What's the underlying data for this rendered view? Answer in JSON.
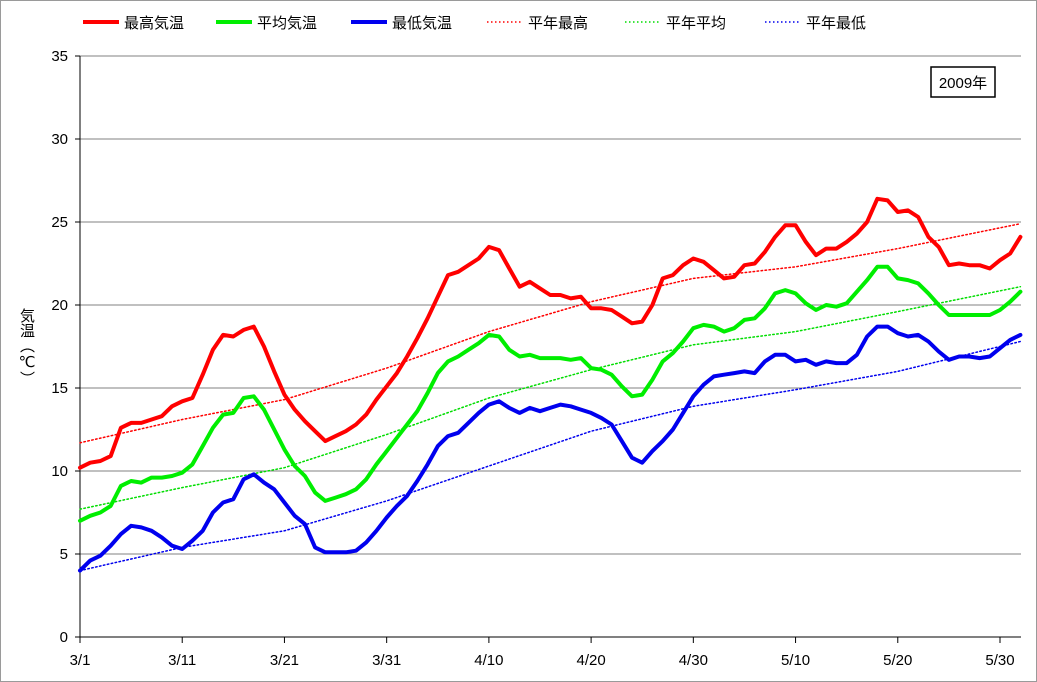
{
  "chart_data": {
    "type": "line",
    "year_label": "2009年",
    "ylabel": "気温（℃）",
    "ylim": [
      0,
      35
    ],
    "yticks": [
      0,
      5,
      10,
      15,
      20,
      25,
      30,
      35
    ],
    "xlim_days": [
      0,
      91
    ],
    "xticks": [
      {
        "label": "3/1",
        "day": 0
      },
      {
        "label": "3/11",
        "day": 10
      },
      {
        "label": "3/21",
        "day": 20
      },
      {
        "label": "3/31",
        "day": 30
      },
      {
        "label": "4/10",
        "day": 40
      },
      {
        "label": "4/20",
        "day": 50
      },
      {
        "label": "4/30",
        "day": 60
      },
      {
        "label": "5/10",
        "day": 70
      },
      {
        "label": "5/20",
        "day": 80
      },
      {
        "label": "5/30",
        "day": 90
      }
    ],
    "grid": true,
    "legend_position": "top",
    "series": [
      {
        "name": "最高気温",
        "color": "#ff0000",
        "style": "solid",
        "points": [
          [
            0,
            10.2
          ],
          [
            1,
            10.5
          ],
          [
            2,
            10.6
          ],
          [
            3,
            10.9
          ],
          [
            4,
            12.6
          ],
          [
            5,
            12.9
          ],
          [
            6,
            12.9
          ],
          [
            7,
            13.1
          ],
          [
            8,
            13.3
          ],
          [
            9,
            13.9
          ],
          [
            10,
            14.2
          ],
          [
            11,
            14.4
          ],
          [
            12,
            15.8
          ],
          [
            13,
            17.3
          ],
          [
            14,
            18.2
          ],
          [
            15,
            18.1
          ],
          [
            16,
            18.5
          ],
          [
            17,
            18.7
          ],
          [
            18,
            17.5
          ],
          [
            19,
            16.0
          ],
          [
            20,
            14.6
          ],
          [
            21,
            13.7
          ],
          [
            22,
            13.0
          ],
          [
            23,
            12.4
          ],
          [
            24,
            11.8
          ],
          [
            25,
            12.1
          ],
          [
            26,
            12.4
          ],
          [
            27,
            12.8
          ],
          [
            28,
            13.4
          ],
          [
            29,
            14.3
          ],
          [
            30,
            15.1
          ],
          [
            31,
            15.9
          ],
          [
            32,
            16.9
          ],
          [
            33,
            18.0
          ],
          [
            34,
            19.2
          ],
          [
            35,
            20.5
          ],
          [
            36,
            21.8
          ],
          [
            37,
            22.0
          ],
          [
            38,
            22.4
          ],
          [
            39,
            22.8
          ],
          [
            40,
            23.5
          ],
          [
            41,
            23.3
          ],
          [
            42,
            22.2
          ],
          [
            43,
            21.1
          ],
          [
            44,
            21.4
          ],
          [
            45,
            21.0
          ],
          [
            46,
            20.6
          ],
          [
            47,
            20.6
          ],
          [
            48,
            20.4
          ],
          [
            49,
            20.5
          ],
          [
            50,
            19.8
          ],
          [
            51,
            19.8
          ],
          [
            52,
            19.7
          ],
          [
            53,
            19.3
          ],
          [
            54,
            18.9
          ],
          [
            55,
            19.0
          ],
          [
            56,
            20.0
          ],
          [
            57,
            21.6
          ],
          [
            58,
            21.8
          ],
          [
            59,
            22.4
          ],
          [
            60,
            22.8
          ],
          [
            61,
            22.6
          ],
          [
            62,
            22.1
          ],
          [
            63,
            21.6
          ],
          [
            64,
            21.7
          ],
          [
            65,
            22.4
          ],
          [
            66,
            22.5
          ],
          [
            67,
            23.2
          ],
          [
            68,
            24.1
          ],
          [
            69,
            24.8
          ],
          [
            70,
            24.8
          ],
          [
            71,
            23.8
          ],
          [
            72,
            23.0
          ],
          [
            73,
            23.4
          ],
          [
            74,
            23.4
          ],
          [
            75,
            23.8
          ],
          [
            76,
            24.3
          ],
          [
            77,
            25.0
          ],
          [
            78,
            26.4
          ],
          [
            79,
            26.3
          ],
          [
            80,
            25.6
          ],
          [
            81,
            25.7
          ],
          [
            82,
            25.3
          ],
          [
            83,
            24.1
          ],
          [
            84,
            23.5
          ],
          [
            85,
            22.4
          ],
          [
            86,
            22.5
          ],
          [
            87,
            22.4
          ],
          [
            88,
            22.4
          ],
          [
            89,
            22.2
          ],
          [
            90,
            22.7
          ],
          [
            91,
            23.1
          ],
          [
            92,
            24.1
          ]
        ]
      },
      {
        "name": "平均気温",
        "color": "#00ee00",
        "style": "solid",
        "points": [
          [
            0,
            7.0
          ],
          [
            1,
            7.3
          ],
          [
            2,
            7.5
          ],
          [
            3,
            7.9
          ],
          [
            4,
            9.1
          ],
          [
            5,
            9.4
          ],
          [
            6,
            9.3
          ],
          [
            7,
            9.6
          ],
          [
            8,
            9.6
          ],
          [
            9,
            9.7
          ],
          [
            10,
            9.9
          ],
          [
            11,
            10.4
          ],
          [
            12,
            11.5
          ],
          [
            13,
            12.6
          ],
          [
            14,
            13.4
          ],
          [
            15,
            13.5
          ],
          [
            16,
            14.4
          ],
          [
            17,
            14.5
          ],
          [
            18,
            13.7
          ],
          [
            19,
            12.5
          ],
          [
            20,
            11.3
          ],
          [
            21,
            10.3
          ],
          [
            22,
            9.7
          ],
          [
            23,
            8.7
          ],
          [
            24,
            8.2
          ],
          [
            25,
            8.4
          ],
          [
            26,
            8.6
          ],
          [
            27,
            8.9
          ],
          [
            28,
            9.5
          ],
          [
            29,
            10.4
          ],
          [
            30,
            11.2
          ],
          [
            31,
            12.0
          ],
          [
            32,
            12.8
          ],
          [
            33,
            13.6
          ],
          [
            34,
            14.7
          ],
          [
            35,
            15.9
          ],
          [
            36,
            16.6
          ],
          [
            37,
            16.9
          ],
          [
            38,
            17.3
          ],
          [
            39,
            17.7
          ],
          [
            40,
            18.2
          ],
          [
            41,
            18.1
          ],
          [
            42,
            17.3
          ],
          [
            43,
            16.9
          ],
          [
            44,
            17.0
          ],
          [
            45,
            16.8
          ],
          [
            46,
            16.8
          ],
          [
            47,
            16.8
          ],
          [
            48,
            16.7
          ],
          [
            49,
            16.8
          ],
          [
            50,
            16.2
          ],
          [
            51,
            16.1
          ],
          [
            52,
            15.8
          ],
          [
            53,
            15.1
          ],
          [
            54,
            14.5
          ],
          [
            55,
            14.6
          ],
          [
            56,
            15.5
          ],
          [
            57,
            16.6
          ],
          [
            58,
            17.1
          ],
          [
            59,
            17.8
          ],
          [
            60,
            18.6
          ],
          [
            61,
            18.8
          ],
          [
            62,
            18.7
          ],
          [
            63,
            18.4
          ],
          [
            64,
            18.6
          ],
          [
            65,
            19.1
          ],
          [
            66,
            19.2
          ],
          [
            67,
            19.8
          ],
          [
            68,
            20.7
          ],
          [
            69,
            20.9
          ],
          [
            70,
            20.7
          ],
          [
            71,
            20.1
          ],
          [
            72,
            19.7
          ],
          [
            73,
            20.0
          ],
          [
            74,
            19.9
          ],
          [
            75,
            20.1
          ],
          [
            76,
            20.8
          ],
          [
            77,
            21.5
          ],
          [
            78,
            22.3
          ],
          [
            79,
            22.3
          ],
          [
            80,
            21.6
          ],
          [
            81,
            21.5
          ],
          [
            82,
            21.3
          ],
          [
            83,
            20.7
          ],
          [
            84,
            20.0
          ],
          [
            85,
            19.4
          ],
          [
            86,
            19.4
          ],
          [
            87,
            19.4
          ],
          [
            88,
            19.4
          ],
          [
            89,
            19.4
          ],
          [
            90,
            19.7
          ],
          [
            91,
            20.2
          ],
          [
            92,
            20.8
          ]
        ]
      },
      {
        "name": "最低気温",
        "color": "#0000ee",
        "style": "solid",
        "points": [
          [
            0,
            4.0
          ],
          [
            1,
            4.6
          ],
          [
            2,
            4.9
          ],
          [
            3,
            5.5
          ],
          [
            4,
            6.2
          ],
          [
            5,
            6.7
          ],
          [
            6,
            6.6
          ],
          [
            7,
            6.4
          ],
          [
            8,
            6.0
          ],
          [
            9,
            5.5
          ],
          [
            10,
            5.3
          ],
          [
            11,
            5.8
          ],
          [
            12,
            6.4
          ],
          [
            13,
            7.5
          ],
          [
            14,
            8.1
          ],
          [
            15,
            8.3
          ],
          [
            16,
            9.5
          ],
          [
            17,
            9.8
          ],
          [
            18,
            9.3
          ],
          [
            19,
            8.9
          ],
          [
            20,
            8.1
          ],
          [
            21,
            7.3
          ],
          [
            22,
            6.8
          ],
          [
            23,
            5.4
          ],
          [
            24,
            5.1
          ],
          [
            25,
            5.1
          ],
          [
            26,
            5.1
          ],
          [
            27,
            5.2
          ],
          [
            28,
            5.7
          ],
          [
            29,
            6.4
          ],
          [
            30,
            7.2
          ],
          [
            31,
            7.9
          ],
          [
            32,
            8.5
          ],
          [
            33,
            9.4
          ],
          [
            34,
            10.4
          ],
          [
            35,
            11.5
          ],
          [
            36,
            12.1
          ],
          [
            37,
            12.3
          ],
          [
            38,
            12.9
          ],
          [
            39,
            13.5
          ],
          [
            40,
            14.0
          ],
          [
            41,
            14.2
          ],
          [
            42,
            13.8
          ],
          [
            43,
            13.5
          ],
          [
            44,
            13.8
          ],
          [
            45,
            13.6
          ],
          [
            46,
            13.8
          ],
          [
            47,
            14.0
          ],
          [
            48,
            13.9
          ],
          [
            49,
            13.7
          ],
          [
            50,
            13.5
          ],
          [
            51,
            13.2
          ],
          [
            52,
            12.8
          ],
          [
            53,
            11.8
          ],
          [
            54,
            10.8
          ],
          [
            55,
            10.5
          ],
          [
            56,
            11.2
          ],
          [
            57,
            11.8
          ],
          [
            58,
            12.5
          ],
          [
            59,
            13.5
          ],
          [
            60,
            14.5
          ],
          [
            61,
            15.2
          ],
          [
            62,
            15.7
          ],
          [
            63,
            15.8
          ],
          [
            64,
            15.9
          ],
          [
            65,
            16.0
          ],
          [
            66,
            15.9
          ],
          [
            67,
            16.6
          ],
          [
            68,
            17.0
          ],
          [
            69,
            17.0
          ],
          [
            70,
            16.6
          ],
          [
            71,
            16.7
          ],
          [
            72,
            16.4
          ],
          [
            73,
            16.6
          ],
          [
            74,
            16.5
          ],
          [
            75,
            16.5
          ],
          [
            76,
            17.0
          ],
          [
            77,
            18.1
          ],
          [
            78,
            18.7
          ],
          [
            79,
            18.7
          ],
          [
            80,
            18.3
          ],
          [
            81,
            18.1
          ],
          [
            82,
            18.2
          ],
          [
            83,
            17.8
          ],
          [
            84,
            17.2
          ],
          [
            85,
            16.7
          ],
          [
            86,
            16.9
          ],
          [
            87,
            16.9
          ],
          [
            88,
            16.8
          ],
          [
            89,
            16.9
          ],
          [
            90,
            17.4
          ],
          [
            91,
            17.9
          ],
          [
            92,
            18.2
          ]
        ]
      },
      {
        "name": "平年最高",
        "color": "#ff0000",
        "style": "dotted",
        "points": [
          [
            0,
            11.7
          ],
          [
            10,
            13.1
          ],
          [
            20,
            14.3
          ],
          [
            30,
            16.2
          ],
          [
            40,
            18.4
          ],
          [
            50,
            20.2
          ],
          [
            60,
            21.6
          ],
          [
            70,
            22.3
          ],
          [
            80,
            23.4
          ],
          [
            92,
            24.9
          ]
        ]
      },
      {
        "name": "平年平均",
        "color": "#00dd00",
        "style": "dotted",
        "points": [
          [
            0,
            7.7
          ],
          [
            10,
            9.0
          ],
          [
            20,
            10.2
          ],
          [
            30,
            12.2
          ],
          [
            40,
            14.4
          ],
          [
            50,
            16.1
          ],
          [
            60,
            17.6
          ],
          [
            70,
            18.4
          ],
          [
            80,
            19.6
          ],
          [
            92,
            21.1
          ]
        ]
      },
      {
        "name": "平年最低",
        "color": "#0000ee",
        "style": "dotted",
        "points": [
          [
            0,
            4.0
          ],
          [
            10,
            5.4
          ],
          [
            20,
            6.4
          ],
          [
            30,
            8.2
          ],
          [
            40,
            10.3
          ],
          [
            50,
            12.4
          ],
          [
            60,
            13.9
          ],
          [
            70,
            14.9
          ],
          [
            80,
            16.0
          ],
          [
            92,
            17.8
          ]
        ]
      }
    ]
  }
}
